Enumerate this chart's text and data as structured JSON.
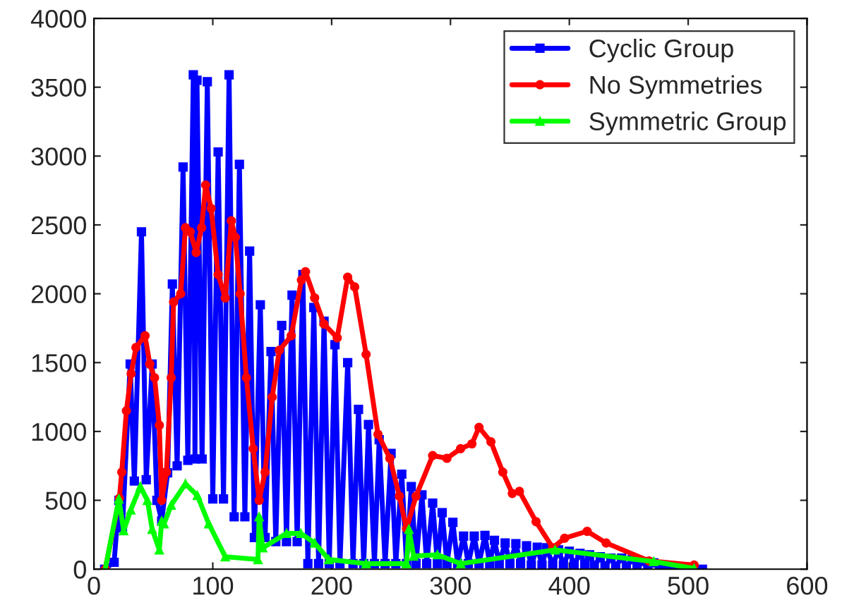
{
  "chart_data": {
    "type": "line",
    "xlim": [
      0,
      600
    ],
    "ylim": [
      0,
      4000
    ],
    "xticks": [
      0,
      100,
      200,
      300,
      400,
      500,
      600
    ],
    "yticks": [
      0,
      500,
      1000,
      1500,
      2000,
      2500,
      3000,
      3500,
      4000
    ],
    "grid": false,
    "legend": "top right",
    "series": [
      {
        "name": "Cyclic Group",
        "color": "#0000ff",
        "marker": "square",
        "x": [
          9,
          17,
          21,
          24,
          30.5,
          34,
          40,
          44,
          49,
          53,
          57,
          62,
          66,
          70,
          75,
          79,
          83.6,
          85,
          86.7,
          91,
          95.4,
          100,
          104.5,
          109,
          113.7,
          118,
          122.4,
          127,
          131,
          135,
          140,
          144,
          149,
          153,
          158,
          162,
          166.7,
          171,
          175.8,
          180,
          185,
          189,
          193.6,
          198,
          202.8,
          207,
          213.5,
          218,
          222.6,
          227,
          231,
          236,
          240,
          245,
          250,
          254,
          259,
          263,
          267,
          271,
          276,
          280,
          285,
          289,
          293,
          297,
          302,
          306,
          311,
          315,
          320,
          324,
          329,
          333,
          337,
          341,
          346,
          350,
          355,
          359,
          364,
          368,
          373,
          377,
          381,
          386,
          391,
          395,
          400,
          404,
          409,
          413,
          417,
          421,
          426,
          430,
          435,
          439,
          444,
          448,
          453,
          457,
          462,
          466,
          471,
          476,
          481,
          512
        ],
        "values": [
          0,
          50,
          500,
          300,
          1490,
          640,
          2450,
          650,
          1490,
          500,
          350,
          700,
          2070,
          750,
          2920,
          790,
          3590,
          800,
          3550,
          800,
          3540,
          510,
          3030,
          510,
          3590,
          380,
          2940,
          380,
          2310,
          230,
          1920,
          230,
          1580,
          200,
          1770,
          200,
          1990,
          200,
          2140,
          40,
          1900,
          40,
          1800,
          40,
          1630,
          40,
          1500,
          40,
          1160,
          40,
          1050,
          40,
          940,
          40,
          840,
          40,
          690,
          40,
          600,
          40,
          540,
          40,
          480,
          40,
          410,
          40,
          340,
          40,
          240,
          40,
          240,
          40,
          245,
          40,
          210,
          40,
          190,
          40,
          185,
          40,
          170,
          30,
          160,
          30,
          155,
          30,
          140,
          30,
          130,
          30,
          115,
          30,
          105,
          20,
          90,
          20,
          80,
          20,
          80,
          20,
          70,
          20,
          55,
          10,
          45,
          10,
          20,
          0
        ]
      },
      {
        "name": "No Symmetries",
        "color": "#ff0000",
        "marker": "circle",
        "x": [
          9.5,
          21.4,
          23.4,
          27.3,
          31.3,
          35.3,
          43,
          47,
          51,
          55,
          57,
          61,
          65,
          67,
          73,
          77,
          81,
          86,
          90.6,
          94,
          98.6,
          104.5,
          110.5,
          115.6,
          119,
          123,
          128.3,
          134,
          139,
          144,
          150,
          156,
          166,
          174.6,
          178,
          185.7,
          193.6,
          204.7,
          213.5,
          219.4,
          229,
          239,
          249,
          257,
          263,
          271,
          285,
          297,
          308.5,
          318,
          324,
          334,
          344,
          352,
          358,
          372,
          386,
          396,
          415,
          431,
          467,
          505
        ],
        "values": [
          0,
          515,
          705,
          1150,
          1420,
          1610,
          1695,
          1490,
          1390,
          1045,
          500,
          705,
          1390,
          1940,
          2000,
          2480,
          2450,
          2300,
          2480,
          2790,
          2620,
          2140,
          1970,
          2530,
          2410,
          2000,
          1390,
          875,
          500,
          705,
          1250,
          1590,
          1695,
          2100,
          2160,
          1970,
          1780,
          1680,
          2120,
          2050,
          1560,
          980,
          805,
          530,
          295,
          530,
          825,
          805,
          875,
          910,
          1030,
          925,
          705,
          550,
          565,
          345,
          155,
          225,
          275,
          190,
          60,
          30
        ]
      },
      {
        "name": "Symmetric Group",
        "color": "#00ff00",
        "marker": "triangle",
        "x": [
          9.5,
          21,
          25,
          31,
          39,
          45,
          49,
          55,
          57,
          59,
          65,
          77,
          87,
          96.6,
          110.5,
          138,
          139,
          142,
          162,
          174,
          185.7,
          197.6,
          229,
          263,
          265,
          269,
          289,
          308.6,
          388,
          471,
          505
        ],
        "values": [
          0,
          510,
          280,
          430,
          600,
          500,
          290,
          140,
          350,
          330,
          465,
          620,
          535,
          330,
          90,
          70,
          380,
          155,
          260,
          260,
          190,
          70,
          40,
          40,
          290,
          95,
          105,
          40,
          140,
          55,
          5
        ]
      }
    ]
  }
}
